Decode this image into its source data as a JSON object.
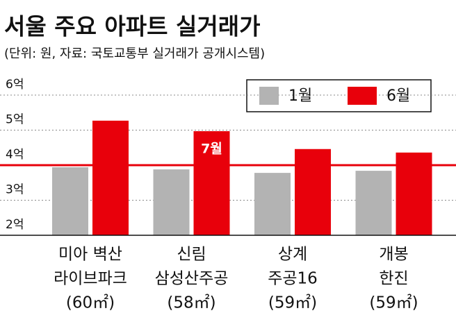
{
  "chart_data": {
    "type": "bar",
    "title": "서울 주요 아파트 실거래가",
    "subtitle": "(단위: 원, 자료: 국토교통부 실거래가 공개시스템)",
    "categories": [
      [
        "미아 벽산",
        "라이브파크",
        "(60㎡)"
      ],
      [
        "신림",
        "삼성산주공",
        "(58㎡)"
      ],
      [
        "상계",
        "주공16",
        "(59㎡)"
      ],
      [
        "개봉",
        "한진",
        "(59㎡)"
      ]
    ],
    "series": [
      {
        "name": "1월",
        "color": "#b3b3b3",
        "values": [
          3.94,
          3.88,
          3.78,
          3.84
        ]
      },
      {
        "name": "6월",
        "color": "#e8000b",
        "values": [
          5.27,
          4.97,
          4.46,
          4.36
        ]
      }
    ],
    "reference_line": {
      "value": 4,
      "color": "#e8000b"
    },
    "annotation": "7월",
    "ylim": [
      2,
      6
    ],
    "yticks": [
      {
        "value": 2,
        "label": "2억"
      },
      {
        "value": 3,
        "label": "3억"
      },
      {
        "value": 4,
        "label": "4억"
      },
      {
        "value": 5,
        "label": "5억"
      },
      {
        "value": 6,
        "label": "6억"
      }
    ],
    "grid": true
  }
}
